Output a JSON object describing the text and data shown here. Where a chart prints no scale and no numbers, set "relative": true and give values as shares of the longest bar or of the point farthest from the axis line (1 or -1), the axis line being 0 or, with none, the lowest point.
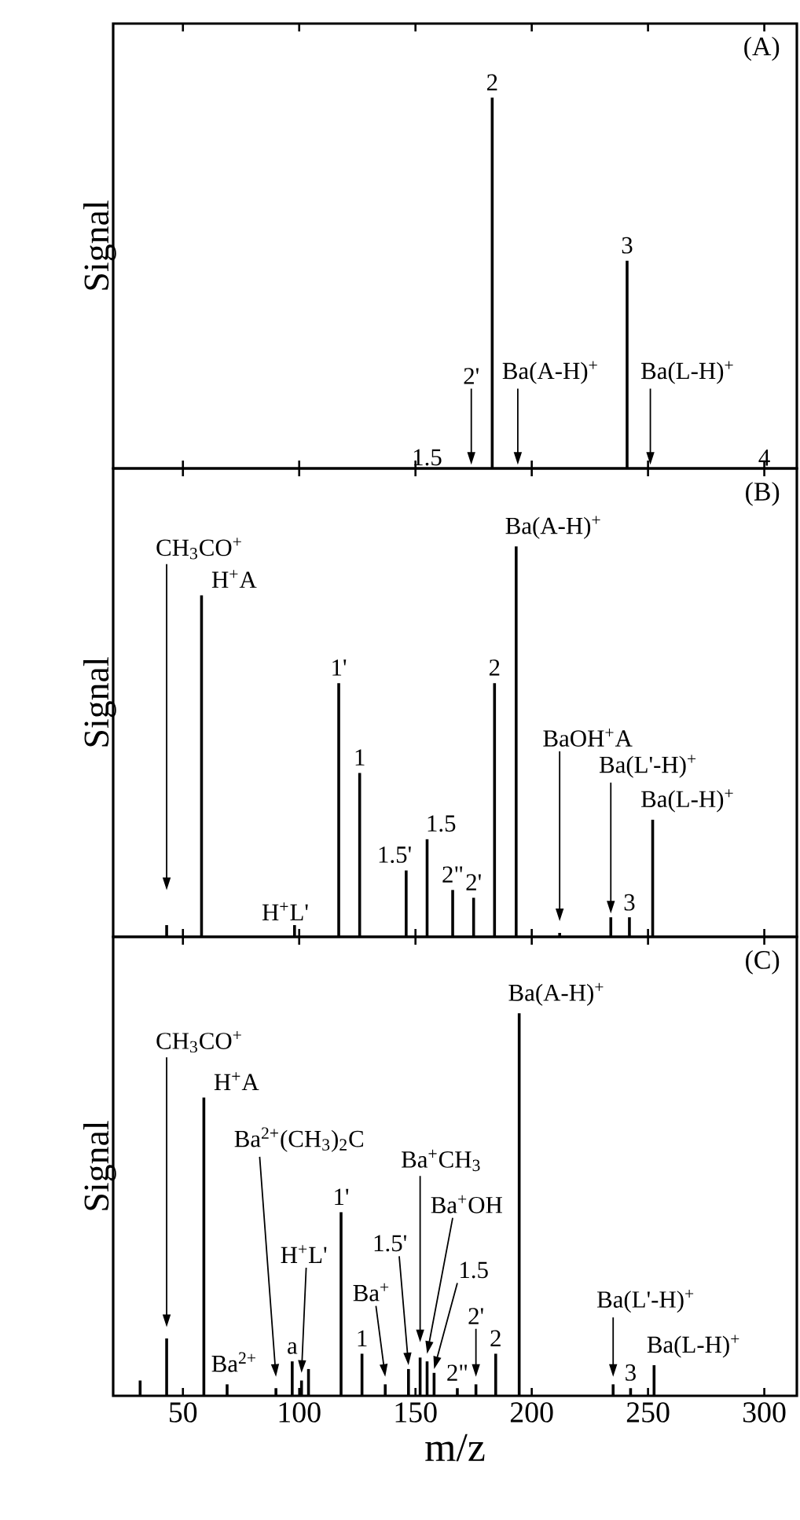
{
  "chart_data": [
    {
      "type": "bar",
      "title": "(A)",
      "ylabel": "Signal",
      "relative": true,
      "color": "#000000",
      "xlim": [
        20,
        314
      ],
      "xticks": [
        50,
        100,
        150,
        200,
        250,
        300
      ],
      "tick_labels": false,
      "x": [
        183,
        241
      ],
      "values": [
        1,
        0.56
      ],
      "annotations": [
        {
          "text": "2",
          "x": 183,
          "y": 1
        },
        {
          "text": "3",
          "x": 241,
          "y": 0.56
        },
        "2'",
        "Ba(A-H)$^{+}$",
        "Ba(L-H)$^{+}$",
        "1.5",
        "4"
      ]
    },
    {
      "type": "bar",
      "title": "(B)",
      "ylabel": "Signal",
      "relative": true,
      "color": "#000000",
      "xlim": [
        20,
        314
      ],
      "xticks": [
        50,
        100,
        150,
        200,
        250,
        300
      ],
      "tick_labels": false,
      "x": [
        43,
        58,
        98,
        117,
        126,
        146,
        155,
        166,
        175,
        184,
        193.3,
        212,
        234,
        242,
        252
      ],
      "values": [
        0.03,
        0.875,
        0.03,
        0.65,
        0.42,
        0.17,
        0.25,
        0.12,
        0.1,
        0.65,
        1,
        0.01,
        0.05,
        0.05,
        0.3
      ],
      "annotations": [
        "CH$_{3}$CO$^{+}$",
        {
          "text": "H$^{+}$A",
          "x": 58,
          "y": 0.875
        },
        {
          "text": "H$^{+}$L'",
          "x": 98,
          "y": 0.03
        },
        {
          "text": "1'",
          "x": 117,
          "y": 0.65
        },
        {
          "text": "1",
          "x": 126,
          "y": 0.42
        },
        {
          "text": "1.5'",
          "x": 146,
          "y": 0.17
        },
        {
          "text": "1.5",
          "x": 155,
          "y": 0.25
        },
        {
          "text": "2\"",
          "x": 166,
          "y": 0.12
        },
        {
          "text": "2'",
          "x": 175,
          "y": 0.1
        },
        {
          "text": "2",
          "x": 184,
          "y": 0.65
        },
        {
          "text": "Ba(A-H)$^{+}$",
          "x": 193.3,
          "y": 1
        },
        "BaOH$^{+}$A",
        "Ba(L'-H)$^{+}$",
        {
          "text": "3",
          "x": 242,
          "y": 0.05
        },
        {
          "text": "Ba(L-H)$^{+}$",
          "x": 252,
          "y": 0.3
        }
      ]
    },
    {
      "type": "bar",
      "title": "(C)",
      "ylabel": "Signal",
      "xlabel": "m/z",
      "relative": true,
      "color": "#000000",
      "xlim": [
        20,
        314
      ],
      "xticks": [
        50,
        100,
        150,
        200,
        250,
        300
      ],
      "tick_labels": "x",
      "x": [
        31.6,
        43,
        59,
        69,
        90,
        97,
        101,
        104,
        118,
        127,
        137,
        147,
        152,
        155,
        158,
        168,
        176,
        184.5,
        194.6,
        235,
        242.5,
        252.6
      ],
      "values": [
        0.04,
        0.15,
        0.78,
        0.03,
        0.02,
        0.09,
        0.04,
        0.07,
        0.48,
        0.11,
        0.03,
        0.07,
        0.1,
        0.09,
        0.06,
        0.02,
        0.03,
        0.11,
        1,
        0.03,
        0.02,
        0.08
      ],
      "annotations": [
        "CH$_{3}$CO$^{+}$",
        {
          "text": "H$^{+}$A",
          "x": 59,
          "y": 0.78
        },
        {
          "text": "Ba$^{2+}$",
          "x": 69,
          "y": 0.03
        },
        "Ba$^{2+}$(CH$_{3}$)$_{2}$C",
        {
          "text": "a",
          "x": 97,
          "y": 0.09
        },
        "H$^{+}$L'",
        {
          "text": "1'",
          "x": 118,
          "y": 0.48
        },
        {
          "text": "1",
          "x": 127,
          "y": 0.11
        },
        "Ba$^{+}$",
        "1.5'",
        "Ba$^{+}$CH$_{3}$",
        "Ba$^{+}$OH",
        "1.5",
        {
          "text": "2\"",
          "x": 168,
          "y": 0.02
        },
        {
          "text": "2'",
          "x": 176,
          "y": 0.05
        },
        {
          "text": "2",
          "x": 184.5,
          "y": 0.11
        },
        {
          "text": "Ba(A-H)$^{+}$",
          "x": 194.6,
          "y": 1
        },
        {
          "text": "Ba(L'-H)$^{+}$",
          "x": 235,
          "y": 0.05
        },
        {
          "text": "3",
          "x": 242.5,
          "y": 0.02
        },
        {
          "text": "Ba(L-H)$^{+}$",
          "x": 252.6,
          "y": 0.08
        }
      ]
    }
  ]
}
